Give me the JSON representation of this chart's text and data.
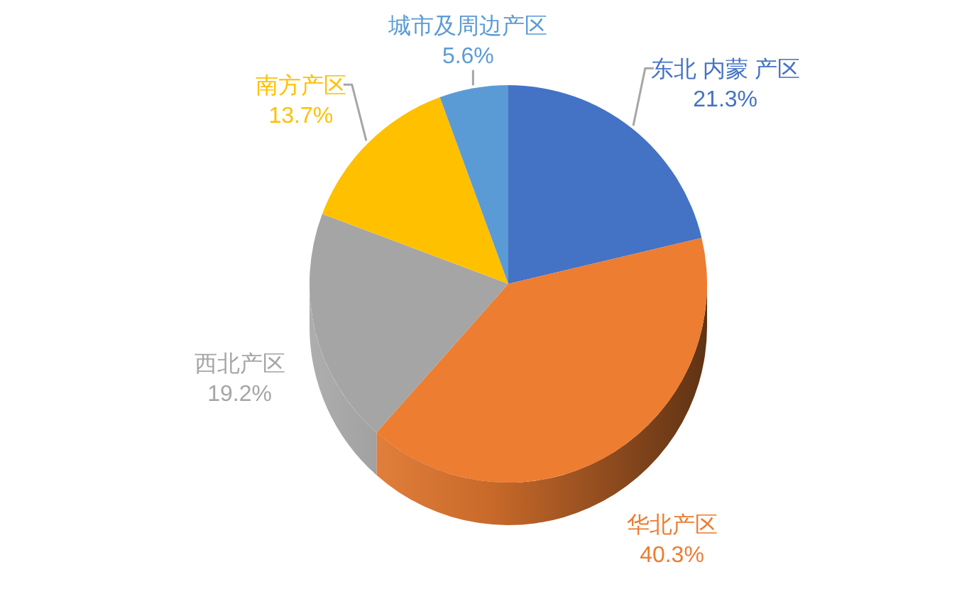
{
  "chart_data": {
    "type": "pie",
    "categories": [
      "东北 内蒙 产区",
      "华北产区",
      "西北产区",
      "南方产区",
      "城市及周边产区"
    ],
    "values": [
      21.3,
      40.3,
      19.2,
      13.7,
      5.6
    ],
    "colors": [
      "#4472c4",
      "#ed7d31",
      "#a5a5a5",
      "#ffc000",
      "#5b9bd5"
    ],
    "value_labels": [
      "21.3%",
      "40.3%",
      "19.2%",
      "13.7%",
      "5.6%"
    ]
  }
}
